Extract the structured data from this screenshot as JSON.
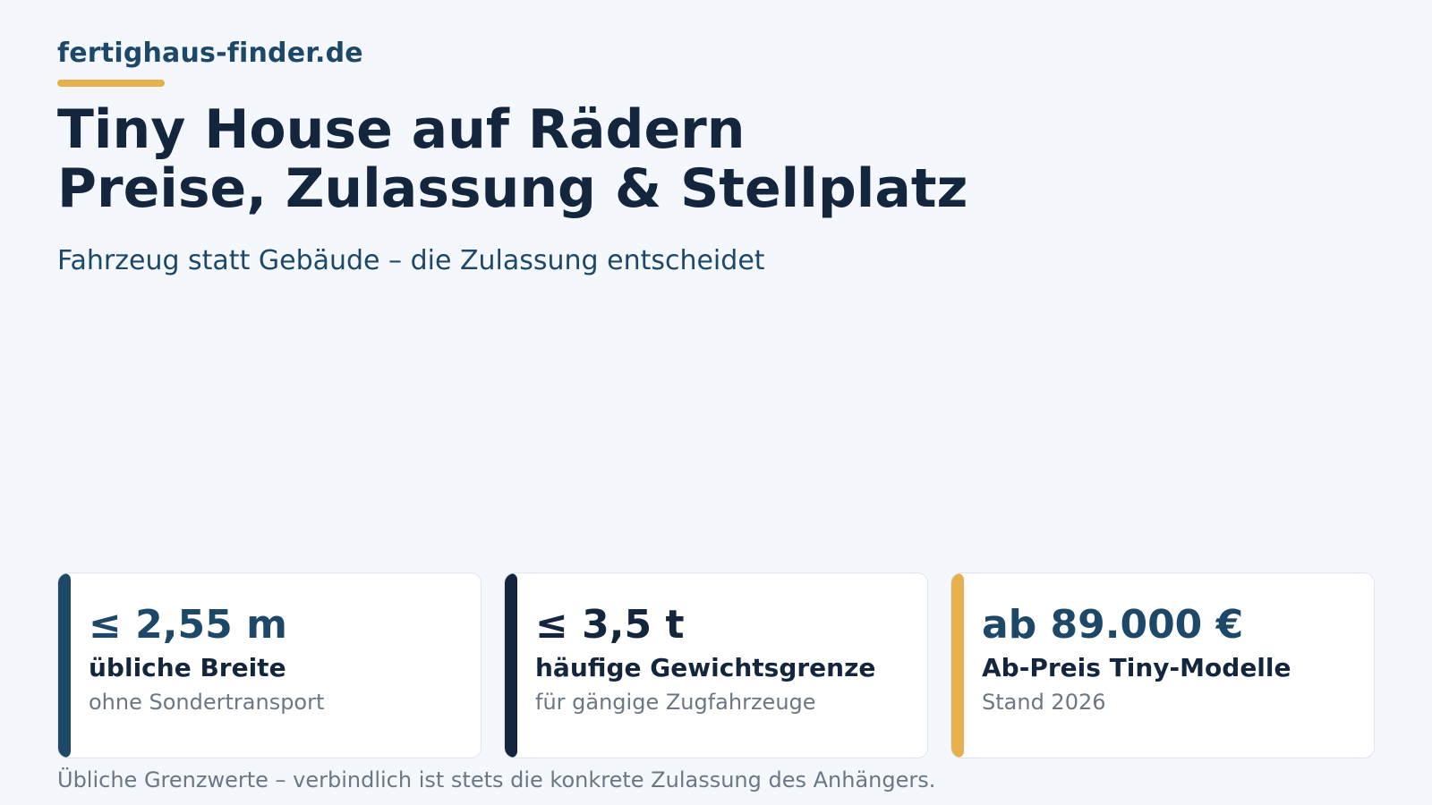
{
  "brand": {
    "name": "fertighaus-finder.de"
  },
  "hero": {
    "title_line1": "Tiny House auf Rädern",
    "title_line2": "Preise, Zulassung & Stellplatz",
    "subtitle": "Fahrzeug statt Gebäude – die Zulassung entscheidet"
  },
  "stats": [
    {
      "value": "≤ 2,55 m",
      "label": "übliche Breite",
      "note": "ohne Sondertransport",
      "accent": "#1e4868",
      "value_color": "#1e4868"
    },
    {
      "value": "≤ 3,5 t",
      "label": "häufige Gewichtsgrenze",
      "note": "für gängige Zugfahrzeuge",
      "accent": "#13263d",
      "value_color": "#13263d"
    },
    {
      "value": "ab 89.000 €",
      "label": "Ab-Preis Tiny-Modelle",
      "note": "Stand 2026",
      "accent": "#e6b04d",
      "value_color": "#1e4868"
    }
  ],
  "footnote": "Übliche Grenzwerte – verbindlich ist stets die konkrete Zulassung des Anhängers.",
  "colors": {
    "background": "#f4f8fc",
    "brand": "#1e4868",
    "heading": "#13263d",
    "accent": "#e6b04d",
    "muted": "#6b7785"
  }
}
